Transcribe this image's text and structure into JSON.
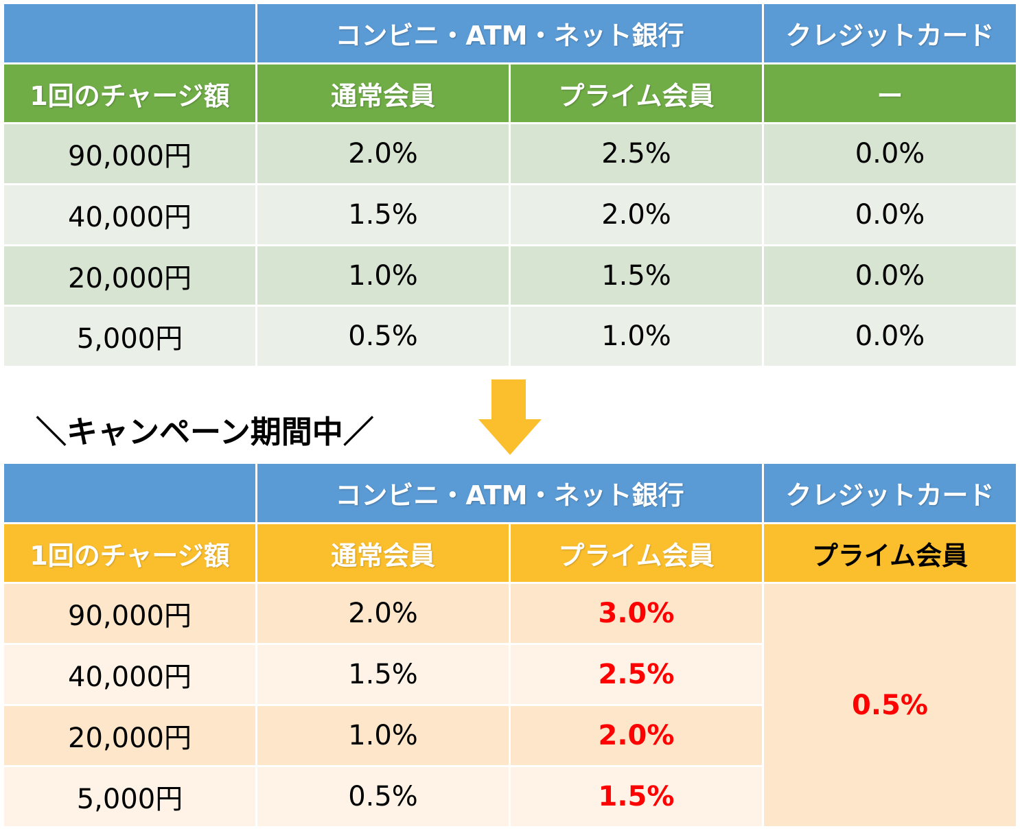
{
  "top_table": {
    "header": {
      "group_label": "コンビニ・ATM・ネット銀行",
      "credit_label": "クレジットカード"
    },
    "subheader": {
      "amount_label": "1回のチャージ額",
      "regular_label": "通常会員",
      "prime_label": "プライム会員",
      "credit_label": "ー"
    },
    "rows": [
      {
        "amount": "90,000円",
        "regular": "2.0%",
        "prime": "2.5%",
        "credit": "0.0%"
      },
      {
        "amount": "40,000円",
        "regular": "1.5%",
        "prime": "2.0%",
        "credit": "0.0%"
      },
      {
        "amount": "20,000円",
        "regular": "1.0%",
        "prime": "1.5%",
        "credit": "0.0%"
      },
      {
        "amount": "5,000円",
        "regular": "0.5%",
        "prime": "1.0%",
        "credit": "0.0%"
      }
    ]
  },
  "campaign_label": "＼キャンペーン期間中／",
  "bottom_table": {
    "header": {
      "group_label": "コンビニ・ATM・ネット銀行",
      "credit_label": "クレジットカード"
    },
    "subheader": {
      "amount_label": "1回のチャージ額",
      "regular_label": "通常会員",
      "prime_label": "プライム会員",
      "credit_label": "プライム会員"
    },
    "rows": [
      {
        "amount": "90,000円",
        "regular": "2.0%",
        "prime": "3.0%"
      },
      {
        "amount": "40,000円",
        "regular": "1.5%",
        "prime": "2.5%"
      },
      {
        "amount": "20,000円",
        "regular": "1.0%",
        "prime": "2.0%"
      },
      {
        "amount": "5,000円",
        "regular": "0.5%",
        "prime": "1.5%"
      }
    ],
    "credit_value": "0.5%"
  },
  "colors": {
    "header_blue": "#5b9bd5",
    "header_green": "#70ad47",
    "header_gold": "#fbbf2d",
    "highlight_red": "#ff0000",
    "arrow": "#fbbf2d"
  },
  "icons": {
    "arrow": "down-arrow-icon"
  }
}
